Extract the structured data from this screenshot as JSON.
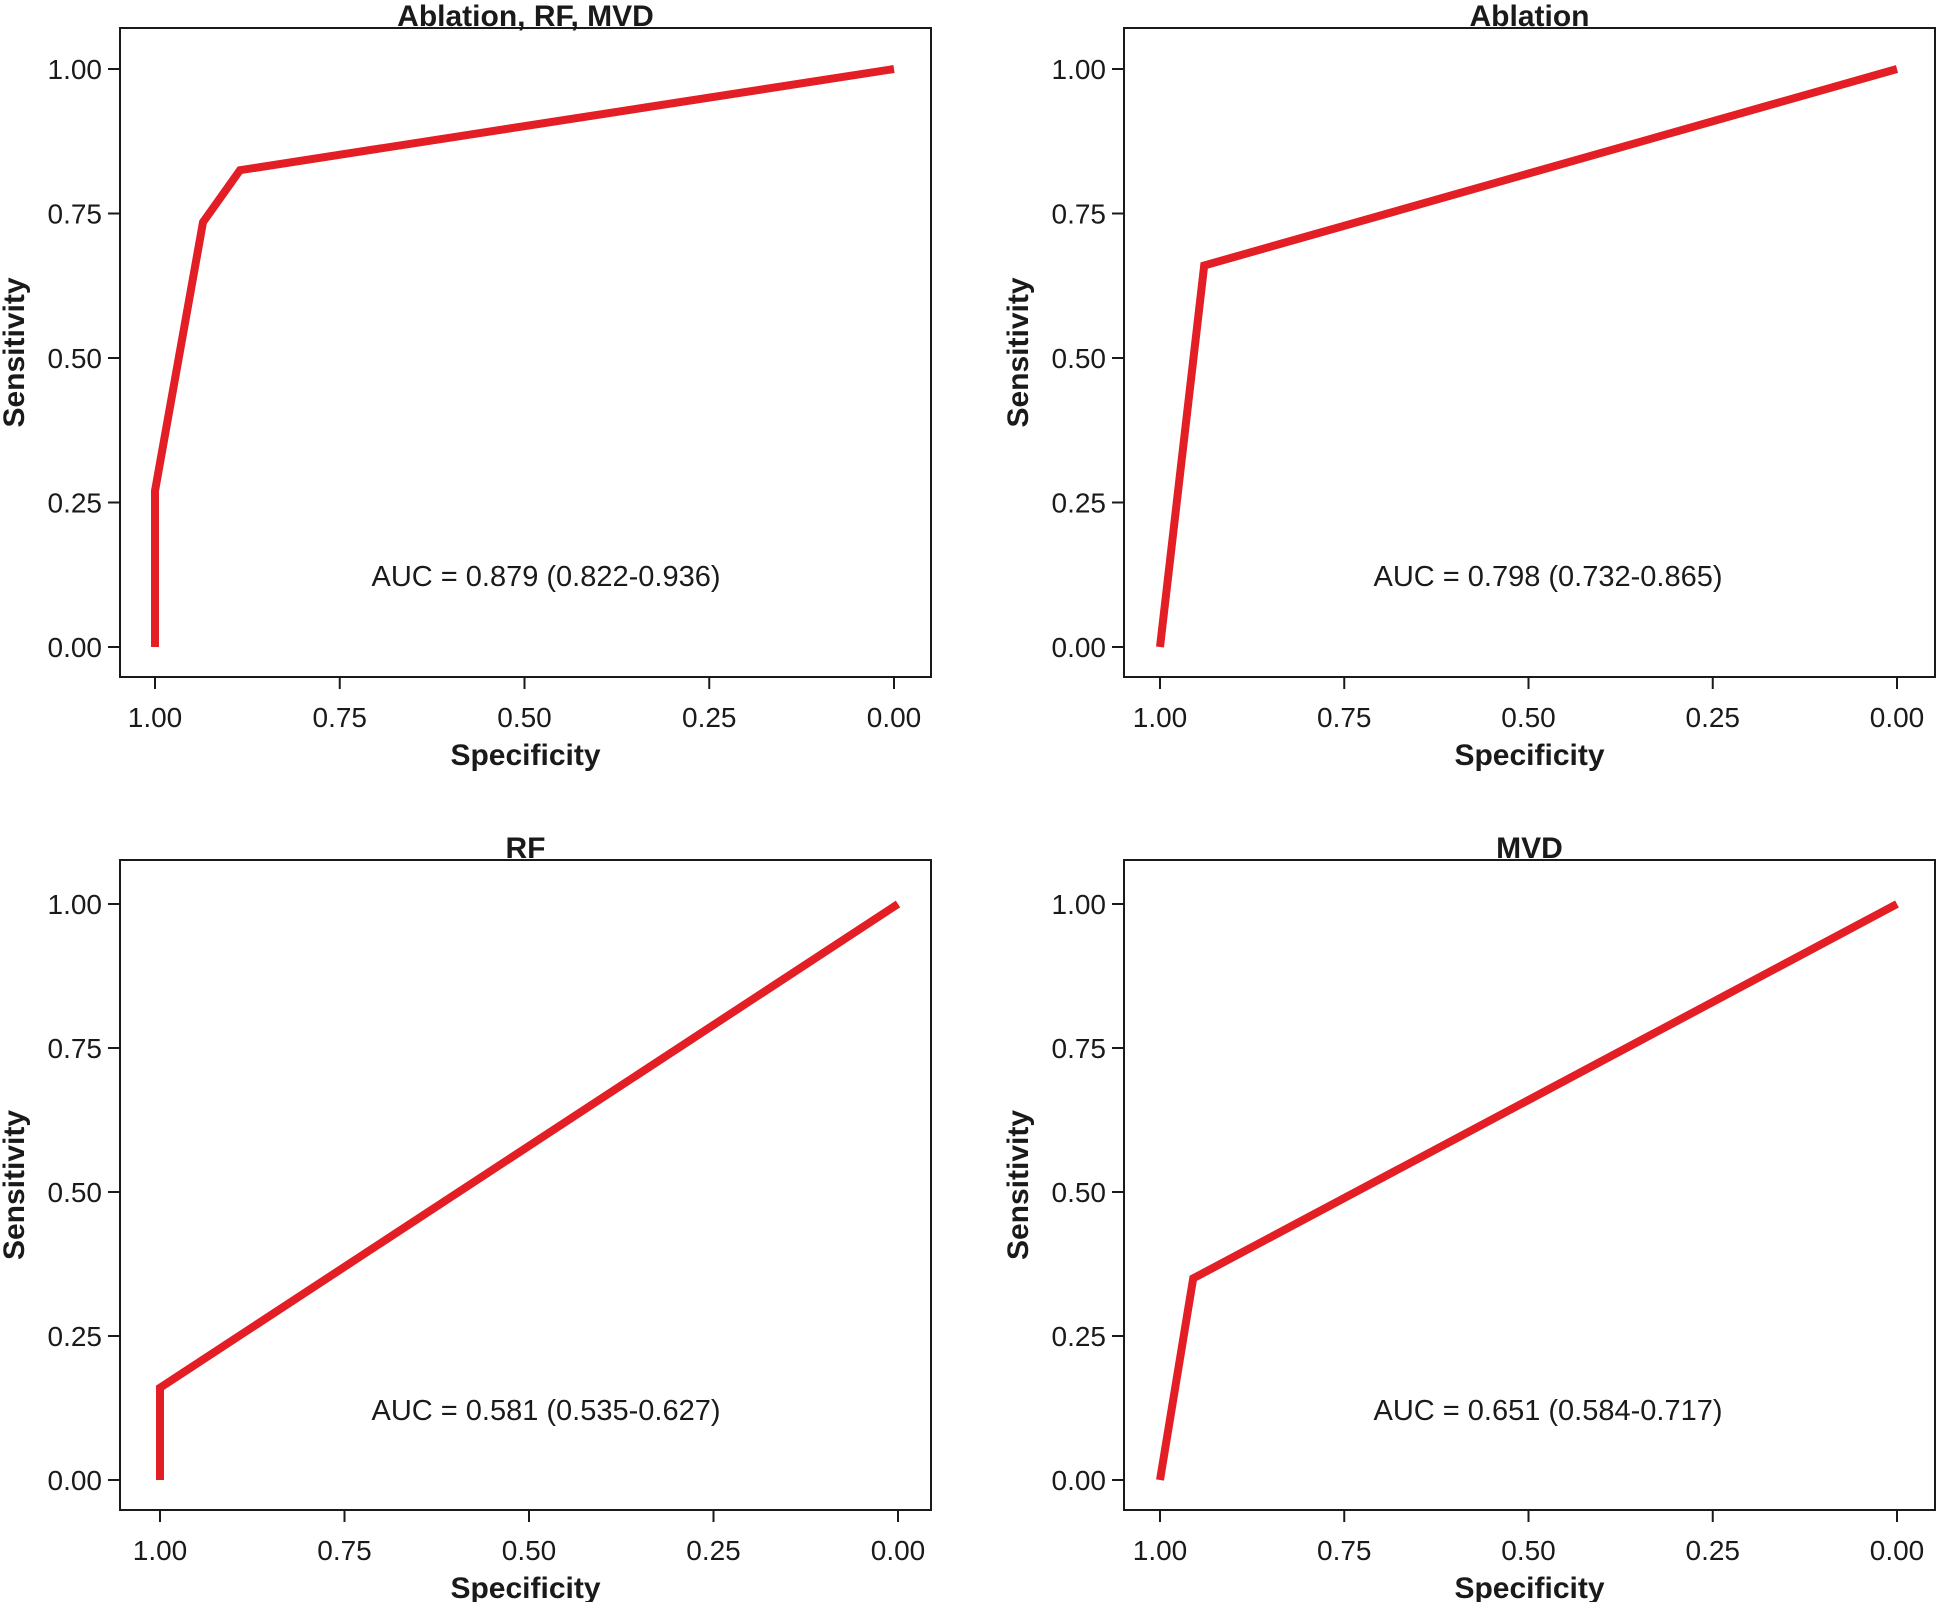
{
  "chart_data": [
    {
      "type": "line",
      "title": "Ablation, RF, MVD",
      "xlabel": "Specificity",
      "ylabel": "Sensitivity",
      "x_reversed": true,
      "xlim": [
        1.0,
        0.0
      ],
      "ylim": [
        0.0,
        1.0
      ],
      "x_ticks": [
        "1.00",
        "0.75",
        "0.50",
        "0.25",
        "0.00"
      ],
      "y_ticks": [
        "0.00",
        "0.25",
        "0.50",
        "0.75",
        "1.00"
      ],
      "grid": false,
      "series": [
        {
          "color": "#e31e24",
          "points": [
            {
              "specificity": 1.0,
              "sensitivity": 0.0
            },
            {
              "specificity": 1.0,
              "sensitivity": 0.27
            },
            {
              "specificity": 0.935,
              "sensitivity": 0.735
            },
            {
              "specificity": 0.885,
              "sensitivity": 0.825
            },
            {
              "specificity": 0.0,
              "sensitivity": 1.0
            }
          ]
        }
      ],
      "annotation": "AUC = 0.879 (0.822-0.936)"
    },
    {
      "type": "line",
      "title": "Ablation",
      "xlabel": "Specificity",
      "ylabel": "Sensitivity",
      "x_reversed": true,
      "xlim": [
        1.0,
        0.0
      ],
      "ylim": [
        0.0,
        1.0
      ],
      "x_ticks": [
        "1.00",
        "0.75",
        "0.50",
        "0.25",
        "0.00"
      ],
      "y_ticks": [
        "0.00",
        "0.25",
        "0.50",
        "0.75",
        "1.00"
      ],
      "grid": false,
      "series": [
        {
          "color": "#e31e24",
          "points": [
            {
              "specificity": 1.0,
              "sensitivity": 0.0
            },
            {
              "specificity": 0.94,
              "sensitivity": 0.66
            },
            {
              "specificity": 0.0,
              "sensitivity": 1.0
            }
          ]
        }
      ],
      "annotation": "AUC = 0.798 (0.732-0.865)"
    },
    {
      "type": "line",
      "title": "RF",
      "xlabel": "Specificity",
      "ylabel": "Sensitivity",
      "x_reversed": true,
      "xlim": [
        1.0,
        0.0
      ],
      "ylim": [
        0.0,
        1.0
      ],
      "x_ticks": [
        "1.00",
        "0.75",
        "0.50",
        "0.25",
        "0.00"
      ],
      "y_ticks": [
        "0.00",
        "0.25",
        "0.50",
        "0.75",
        "1.00"
      ],
      "grid": false,
      "series": [
        {
          "color": "#e31e24",
          "points": [
            {
              "specificity": 1.0,
              "sensitivity": 0.0
            },
            {
              "specificity": 1.0,
              "sensitivity": 0.16
            },
            {
              "specificity": 0.0,
              "sensitivity": 1.0
            }
          ]
        }
      ],
      "annotation": "AUC = 0.581 (0.535-0.627)"
    },
    {
      "type": "line",
      "title": "MVD",
      "xlabel": "Specificity",
      "ylabel": "Sensitivity",
      "x_reversed": true,
      "xlim": [
        1.0,
        0.0
      ],
      "ylim": [
        0.0,
        1.0
      ],
      "x_ticks": [
        "1.00",
        "0.75",
        "0.50",
        "0.25",
        "0.00"
      ],
      "y_ticks": [
        "0.00",
        "0.25",
        "0.50",
        "0.75",
        "1.00"
      ],
      "grid": false,
      "series": [
        {
          "color": "#e31e24",
          "points": [
            {
              "specificity": 1.0,
              "sensitivity": 0.0
            },
            {
              "specificity": 0.955,
              "sensitivity": 0.35
            },
            {
              "specificity": 0.0,
              "sensitivity": 1.0
            }
          ]
        }
      ],
      "annotation": "AUC = 0.651 (0.584-0.717)"
    }
  ]
}
